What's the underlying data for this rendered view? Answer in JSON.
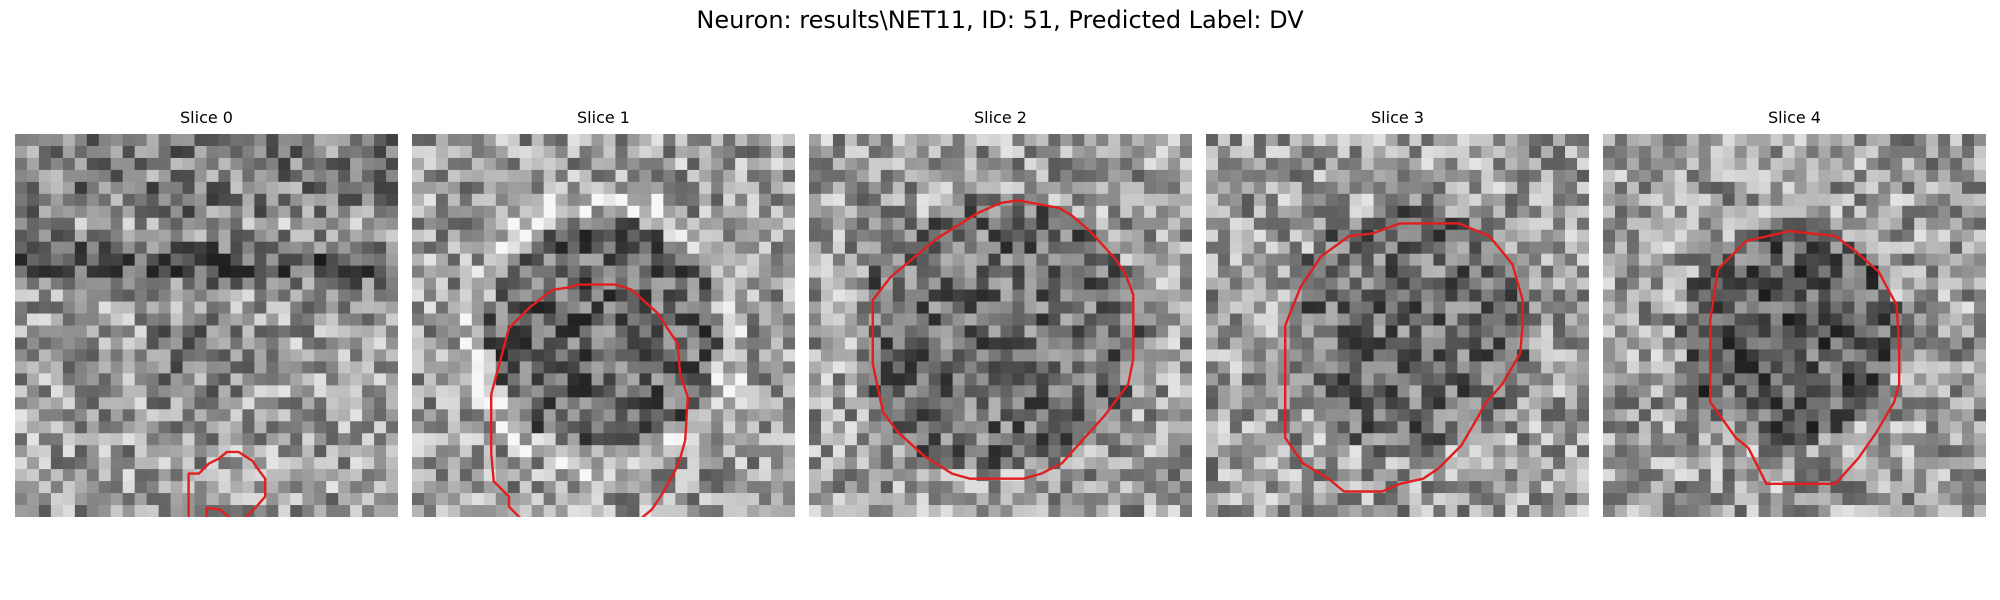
{
  "figure": {
    "title": "Neuron: results\\NET11, ID: 51, Predicted Label: DV"
  },
  "contour_color": "#e11f1f",
  "panels": [
    {
      "title": "Slice 0",
      "image": "noisy grayscale microscopy patch with small cell outline"
    },
    {
      "title": "Slice 1",
      "image": "noisy grayscale microscopy patch with large cell outline"
    },
    {
      "title": "Slice 2",
      "image": "noisy grayscale microscopy patch with large cell outline"
    },
    {
      "title": "Slice 3",
      "image": "noisy grayscale microscopy patch with large cell outline"
    },
    {
      "title": "Slice 4",
      "image": "noisy grayscale microscopy patch with medium cell outline"
    }
  ]
}
